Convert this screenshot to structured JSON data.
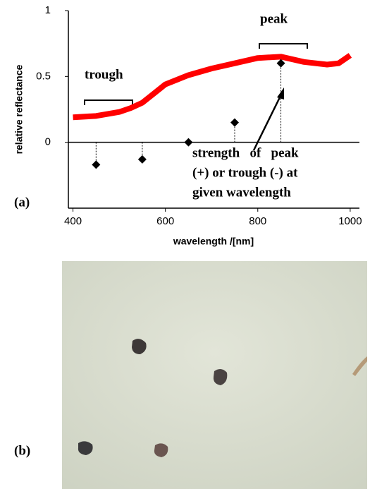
{
  "chart_data": {
    "type": "line",
    "xlabel": "wavelength /[nm]",
    "ylabel": "relative reflectance",
    "xlim": [
      390,
      1020
    ],
    "xticks": [
      400,
      600,
      800,
      1000
    ],
    "ylim": [
      -0.5,
      1
    ],
    "yticks": [
      0,
      0.5,
      1
    ],
    "series": [
      {
        "type": "line",
        "color": "#ff0000",
        "x": [
          400,
          450,
          500,
          525,
          550,
          575,
          600,
          650,
          700,
          750,
          800,
          850,
          875,
          900,
          950,
          975,
          1000
        ],
        "values": [
          0.19,
          0.2,
          0.23,
          0.26,
          0.3,
          0.37,
          0.44,
          0.51,
          0.56,
          0.6,
          0.64,
          0.65,
          0.63,
          0.61,
          0.59,
          0.6,
          0.66
        ]
      },
      {
        "type": "scatter",
        "color": "#000000",
        "x": [
          450,
          550,
          650,
          750,
          850
        ],
        "values": [
          -0.17,
          -0.13,
          0,
          0.15,
          0.6
        ]
      }
    ],
    "annotations": {
      "trough": "trough",
      "peak": "peak",
      "strength": [
        "strength   of   peak",
        "(+) or trough (-) at",
        "given wavelength"
      ]
    },
    "panel_labels": [
      "(a)",
      "(b)"
    ]
  }
}
